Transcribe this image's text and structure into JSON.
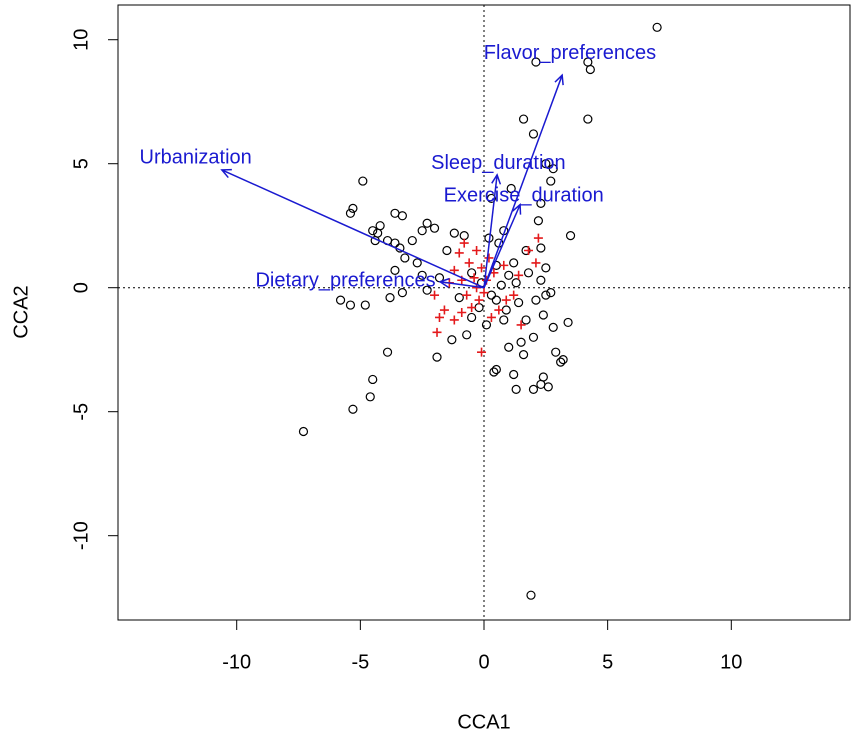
{
  "chart_data": {
    "type": "scatter",
    "xlabel": "CCA1",
    "ylabel": "CCA2",
    "xlim": [
      -14.8,
      14.8
    ],
    "ylim": [
      -13.4,
      11.4
    ],
    "xticks": [
      -10,
      -5,
      0,
      5,
      10
    ],
    "yticks": [
      -10,
      -5,
      0,
      5,
      10
    ],
    "series": [
      {
        "color": "#000000",
        "marker": "circle",
        "x": [
          7,
          2.1,
          4.3,
          4.2,
          4.2,
          1.6,
          2.0,
          2.5,
          2.8,
          2.7,
          3.5,
          2.3,
          2.2,
          1.1,
          0.3,
          -4.9,
          -5.3,
          -5.4,
          -3.6,
          -3.3,
          -4.2,
          -4.5,
          -4.3,
          -4.4,
          -3.9,
          -3.6,
          -3.4,
          -2.9,
          -2.3,
          -2.5,
          -2.0,
          -1.2,
          -0.8,
          0.2,
          0.8,
          -3.2,
          -2.7,
          -3.6,
          -3.3,
          -3.8,
          -2.3,
          -2.5,
          -1.8,
          -5.8,
          -5.4,
          -4.8,
          -3.9,
          -4.5,
          -4.6,
          -5.3,
          -7.3,
          -1.9,
          -1.3,
          -0.7,
          0.5,
          0.4,
          1.2,
          1.3,
          2.0,
          2.3,
          2.4,
          2.6,
          3.2,
          3.1,
          2.9,
          3.4,
          2.8,
          2.4,
          2.0,
          1.5,
          1.6,
          1.0,
          2.5,
          2.7,
          2.3,
          2.5,
          2.3,
          1.7,
          1.2,
          0.5,
          1.0,
          0.5,
          1.4,
          0.8,
          -0.2,
          -0.5,
          0.1,
          0.3,
          1.9,
          2.1,
          1.8,
          0.6,
          -1.5,
          -0.5,
          -1.0,
          0.9,
          1.7,
          -0.1,
          0.7,
          1.3
        ],
        "y": [
          10.5,
          9.1,
          8.8,
          9.1,
          6.8,
          6.8,
          6.2,
          5.0,
          4.8,
          4.3,
          2.1,
          3.4,
          2.7,
          4.0,
          3.6,
          4.3,
          3.2,
          3.0,
          3.0,
          2.9,
          2.5,
          2.3,
          2.2,
          1.9,
          1.9,
          1.8,
          1.6,
          1.9,
          2.6,
          2.3,
          2.4,
          2.2,
          2.1,
          2.0,
          2.3,
          1.2,
          1.0,
          0.7,
          -0.2,
          -0.4,
          -0.1,
          0.5,
          0.4,
          -0.5,
          -0.7,
          -0.7,
          -2.6,
          -3.7,
          -4.4,
          -4.9,
          -5.8,
          -2.8,
          -2.1,
          -1.9,
          -3.3,
          -3.4,
          -3.5,
          -4.1,
          -4.1,
          -3.9,
          -3.6,
          -4.0,
          -2.9,
          -3.0,
          -2.6,
          -1.4,
          -1.6,
          -1.1,
          -2.0,
          -2.2,
          -2.7,
          -2.4,
          -0.3,
          -0.2,
          0.3,
          0.8,
          1.6,
          1.5,
          1.0,
          0.9,
          0.5,
          -0.5,
          -0.6,
          -1.3,
          -0.8,
          -1.2,
          -1.5,
          -0.3,
          -12.4,
          -0.5,
          0.6,
          1.8,
          1.5,
          0.6,
          -0.4,
          -0.9,
          -1.3,
          0.2,
          0.1,
          0.2
        ]
      },
      {
        "color": "#e41a1c",
        "marker": "plus",
        "x": [
          -0.8,
          -0.3,
          -0.6,
          -1.2,
          -0.1,
          0.2,
          -1.4,
          -0.9,
          -0.4,
          0.1,
          -1.8,
          -1.9,
          -1.2,
          -0.9,
          -0.5,
          -0.2,
          -0.1,
          0.3,
          0.6,
          0.9,
          1.2,
          1.4,
          1.8,
          2.2,
          2.1,
          1.5,
          0.8,
          -1.6,
          -0.7,
          0.4,
          -0.3,
          0.0,
          -1.0,
          -2.0
        ],
        "y": [
          1.8,
          1.5,
          1.0,
          0.7,
          0.8,
          1.2,
          0.2,
          0.3,
          0.4,
          0.3,
          -1.2,
          -1.8,
          -1.3,
          -1.0,
          -0.8,
          -0.5,
          -2.6,
          -1.2,
          -0.9,
          -0.5,
          -0.3,
          0.5,
          1.5,
          2.0,
          1.0,
          -1.5,
          0.9,
          -0.9,
          -0.3,
          0.6,
          0.0,
          -0.2,
          1.4,
          -0.3
        ]
      }
    ],
    "arrows": {
      "color": "#1a1ad0",
      "labels": [
        "Urbanization",
        "Flavor_preferences",
        "Sleep_duration",
        "Exercise_duration",
        "Dietary_preferences"
      ],
      "x": [
        -10.6,
        3.16,
        0.53,
        1.46,
        -1.78
      ],
      "y": [
        4.75,
        8.57,
        4.55,
        3.35,
        0.24
      ]
    }
  }
}
